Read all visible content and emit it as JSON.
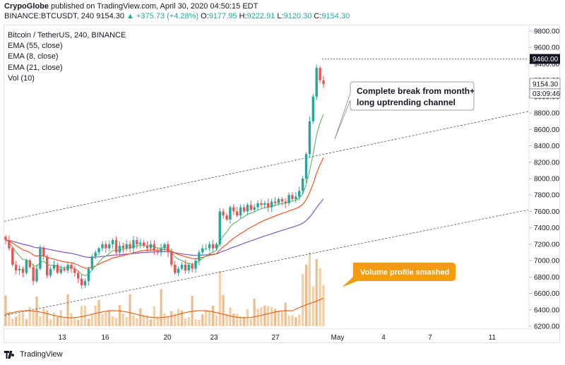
{
  "header": {
    "publisher": "CrypoGlobe",
    "published_text": "published on TradingView.com, April 30, 2020 04:50:15 EDT",
    "symbol": "BINANCE:BTCUSDT, 240",
    "last": "9154.30",
    "change": "▲ +375.73 (+4.28%)",
    "o_label": "O:",
    "o": "9177.95",
    "h_label": "H:",
    "h": "9222.91",
    "l_label": "L:",
    "l": "9120.30",
    "c_label": "C:",
    "c": "9154.30"
  },
  "legend": {
    "title": "Bitcoin / TetherUS, 240, BINANCE",
    "ema55": "EMA (55, close)",
    "ema8": "EMA (8, close)",
    "ema21": "EMA (21, close)",
    "vol": "Vol (10)"
  },
  "annotations": {
    "break_note_line1": "Complete break from month+",
    "break_note_line2": "long uptrending channel",
    "volume_note": "Volume profile smashed"
  },
  "price_tags": {
    "high_tag": "9460.00",
    "last_tag": "9154.30",
    "timer_tag": "03:09:46"
  },
  "footer": {
    "brand": "TradingView"
  },
  "colors": {
    "up": "#26a69a",
    "down": "#ef5350",
    "ema55": "#7e57c2",
    "ema21": "#f4511e",
    "ema8": "#66bb6a",
    "vol_up": "#f5c99a",
    "vol_down": "#f0b47d",
    "vol_ma": "#e65100",
    "note_orange": "#f39c12"
  },
  "chart_data": {
    "type": "candlestick",
    "title": "Bitcoin / TetherUS, 240, BINANCE",
    "y_ticks": [
      9800,
      9600,
      9400,
      9200,
      9000,
      8800,
      8600,
      8400,
      8200,
      8000,
      7800,
      7600,
      7400,
      7200,
      7000,
      6800,
      6600,
      6400,
      6200
    ],
    "ylim": [
      6150,
      9900
    ],
    "x_ticks": [
      "13",
      "16",
      "20",
      "23",
      "27",
      "May",
      "4",
      "7",
      "11"
    ],
    "grid": false,
    "candles_close_approx": [
      7250,
      7150,
      6950,
      6880,
      6900,
      6850,
      7000,
      6920,
      6750,
      6900,
      7150,
      7050,
      6820,
      6900,
      6950,
      6850,
      6900,
      6880,
      6950,
      6900,
      6850,
      6780,
      6700,
      6750,
      6900,
      7050,
      7100,
      7150,
      7200,
      7150,
      7200,
      7250,
      7100,
      7180,
      7150,
      7200,
      7150,
      7250,
      7200,
      7220,
      7180,
      7150,
      7200,
      7120,
      7100,
      7150,
      7200,
      7100,
      6950,
      6850,
      6900,
      6950,
      6880,
      6950,
      6900,
      7000,
      7100,
      7150,
      7150,
      7200,
      7150,
      7200,
      7600,
      7550,
      7500,
      7650,
      7600,
      7550,
      7650,
      7600,
      7680,
      7620,
      7650,
      7700,
      7680,
      7700,
      7650,
      7720,
      7700,
      7750,
      7720,
      7700,
      7800,
      7750,
      7780,
      7850,
      8000,
      8300,
      8700,
      9000,
      9350,
      9200,
      9154.3
    ],
    "ema55_end": 7780,
    "ema21_end": 8280,
    "ema8_end": 8750,
    "upper_channel": {
      "from": [
        "start",
        7480
      ],
      "to": [
        "end",
        8820
      ]
    },
    "lower_channel": {
      "from": [
        "start",
        6330
      ],
      "to": [
        "end",
        7620
      ]
    },
    "high_line": 9460
  }
}
